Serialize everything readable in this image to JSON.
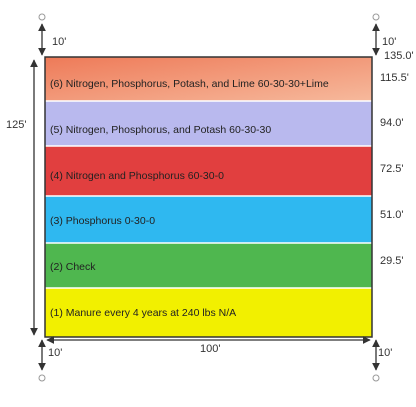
{
  "plots": [
    "(6) Nitrogen, Phosphorus, Potash, and Lime 60-30-30+Lime",
    "(5) Nitrogen, Phosphorus, and Potash 60-30-30",
    "(4) Nitrogen and Phosphorus 60-30-0",
    "(3) Phosphorus 0-30-0",
    "(2) Check",
    "(1) Manure  every 4 years at 240 lbs N/A"
  ],
  "boundaries": [
    "135.0'",
    "115.5'",
    "94.0'",
    "72.5'",
    "51.0'",
    "29.5'"
  ],
  "dimensions": {
    "top_left": "10'",
    "top_right": "10'",
    "left": "125'",
    "bottom": "100'",
    "bottom_left": "10'",
    "bottom_right": "10'"
  }
}
